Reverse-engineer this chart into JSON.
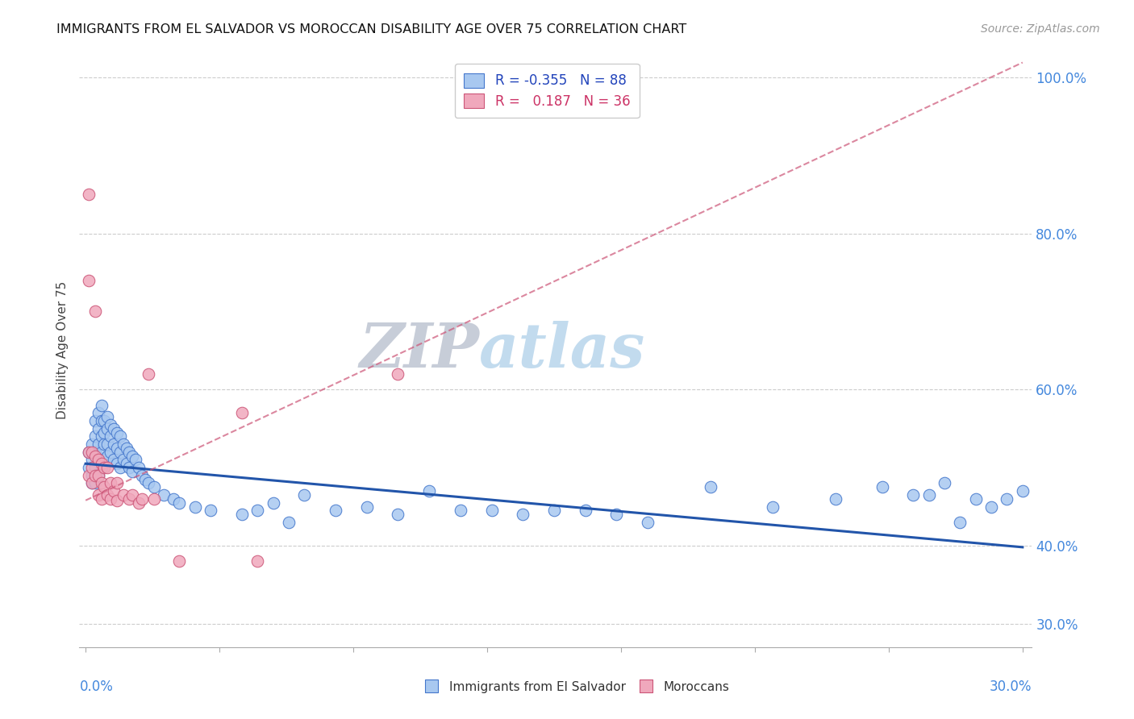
{
  "title": "IMMIGRANTS FROM EL SALVADOR VS MOROCCAN DISABILITY AGE OVER 75 CORRELATION CHART",
  "source": "Source: ZipAtlas.com",
  "ylabel": "Disability Age Over 75",
  "xmin": 0.0,
  "xmax": 0.3,
  "ymin": 0.27,
  "ymax": 1.03,
  "ytick_vals": [
    1.0,
    0.8,
    0.6,
    0.4,
    0.3
  ],
  "ytick_labels": [
    "100.0%",
    "80.0%",
    "60.0%",
    "40.0%",
    "30.0%"
  ],
  "xtick_left_label": "0.0%",
  "xtick_right_label": "30.0%",
  "blue_face_color": "#a8c8f0",
  "blue_edge_color": "#4477cc",
  "pink_face_color": "#f0a8bc",
  "pink_edge_color": "#cc5577",
  "blue_line_color": "#2255aa",
  "pink_line_color": "#cc4466",
  "yaxis_label_color": "#4488dd",
  "legend_text_color1": "#2244bb",
  "legend_text_color2": "#cc3366",
  "blue_trend_x0": 0.0,
  "blue_trend_y0": 0.505,
  "blue_trend_x1": 0.3,
  "blue_trend_y1": 0.398,
  "pink_trend_x0": 0.0,
  "pink_trend_y0": 0.458,
  "pink_trend_x1": 0.1,
  "pink_trend_y1": 0.645,
  "blue_x": [
    0.001,
    0.001,
    0.002,
    0.002,
    0.002,
    0.002,
    0.003,
    0.003,
    0.003,
    0.003,
    0.003,
    0.004,
    0.004,
    0.004,
    0.004,
    0.004,
    0.005,
    0.005,
    0.005,
    0.005,
    0.005,
    0.006,
    0.006,
    0.006,
    0.006,
    0.007,
    0.007,
    0.007,
    0.007,
    0.008,
    0.008,
    0.008,
    0.009,
    0.009,
    0.009,
    0.01,
    0.01,
    0.01,
    0.011,
    0.011,
    0.011,
    0.012,
    0.012,
    0.013,
    0.013,
    0.014,
    0.014,
    0.015,
    0.015,
    0.016,
    0.017,
    0.018,
    0.019,
    0.02,
    0.022,
    0.025,
    0.028,
    0.03,
    0.035,
    0.04,
    0.05,
    0.055,
    0.06,
    0.065,
    0.07,
    0.08,
    0.09,
    0.1,
    0.11,
    0.12,
    0.13,
    0.14,
    0.15,
    0.16,
    0.17,
    0.18,
    0.2,
    0.22,
    0.24,
    0.255,
    0.265,
    0.27,
    0.275,
    0.28,
    0.285,
    0.29,
    0.295,
    0.3
  ],
  "blue_y": [
    0.52,
    0.5,
    0.53,
    0.51,
    0.49,
    0.48,
    0.56,
    0.54,
    0.52,
    0.5,
    0.48,
    0.57,
    0.55,
    0.53,
    0.51,
    0.49,
    0.58,
    0.56,
    0.54,
    0.52,
    0.5,
    0.56,
    0.545,
    0.53,
    0.51,
    0.565,
    0.55,
    0.53,
    0.515,
    0.555,
    0.54,
    0.52,
    0.55,
    0.53,
    0.51,
    0.545,
    0.525,
    0.505,
    0.54,
    0.52,
    0.5,
    0.53,
    0.51,
    0.525,
    0.505,
    0.52,
    0.5,
    0.515,
    0.495,
    0.51,
    0.5,
    0.49,
    0.485,
    0.48,
    0.475,
    0.465,
    0.46,
    0.455,
    0.45,
    0.445,
    0.44,
    0.445,
    0.455,
    0.43,
    0.465,
    0.445,
    0.45,
    0.44,
    0.47,
    0.445,
    0.445,
    0.44,
    0.445,
    0.445,
    0.44,
    0.43,
    0.475,
    0.45,
    0.46,
    0.475,
    0.465,
    0.465,
    0.48,
    0.43,
    0.46,
    0.45,
    0.46,
    0.47
  ],
  "pink_x": [
    0.001,
    0.001,
    0.001,
    0.001,
    0.002,
    0.002,
    0.002,
    0.003,
    0.003,
    0.003,
    0.004,
    0.004,
    0.004,
    0.005,
    0.005,
    0.005,
    0.006,
    0.006,
    0.007,
    0.007,
    0.008,
    0.008,
    0.009,
    0.01,
    0.01,
    0.012,
    0.014,
    0.015,
    0.017,
    0.018,
    0.02,
    0.022,
    0.05,
    0.1,
    0.055,
    0.03
  ],
  "pink_y": [
    0.85,
    0.74,
    0.52,
    0.49,
    0.52,
    0.5,
    0.48,
    0.7,
    0.515,
    0.49,
    0.51,
    0.49,
    0.465,
    0.505,
    0.48,
    0.46,
    0.5,
    0.475,
    0.5,
    0.465,
    0.48,
    0.46,
    0.47,
    0.48,
    0.458,
    0.465,
    0.46,
    0.465,
    0.455,
    0.46,
    0.62,
    0.46,
    0.57,
    0.62,
    0.38,
    0.38
  ]
}
